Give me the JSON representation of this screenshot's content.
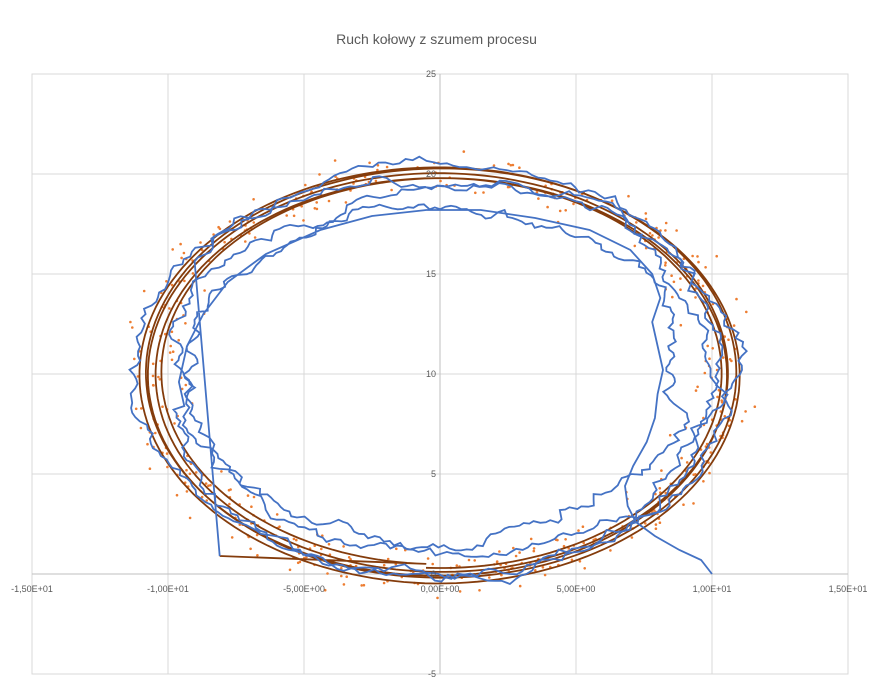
{
  "chart_data": {
    "type": "scatter",
    "title": "Ruch kołowy z szumem procesu",
    "xlabel": "",
    "ylabel": "",
    "xlim": [
      -15,
      15
    ],
    "ylim": [
      -5,
      25
    ],
    "x_ticks": [
      -15,
      -10,
      -5,
      0,
      5,
      10,
      15
    ],
    "x_tick_labels": [
      "-1,50E+01",
      "-1,00E+01",
      "-5,00E+00",
      "0,00E+00",
      "5,00E+00",
      "1,00E+01",
      "1,50E+01"
    ],
    "y_ticks": [
      -5,
      0,
      5,
      10,
      15,
      20,
      25
    ],
    "y_tick_labels": [
      "-5",
      "0",
      "5",
      "10",
      "15",
      "20",
      "25"
    ],
    "grid": true,
    "legend": "none",
    "series": [
      {
        "kind": "measurements (markers)",
        "color": "#ED7D31",
        "center": [
          0,
          10
        ],
        "radius_x": 10.5,
        "radius_y": 10.0,
        "approx_point_count": 500,
        "noise_sd": 0.8
      },
      {
        "kind": "filtered estimate (line)",
        "color": "#4472C4",
        "x_start": 10,
        "y_start": 0,
        "points": [
          [
            10,
            0
          ],
          [
            9.6,
            0.7
          ],
          [
            8.8,
            1.2
          ],
          [
            7.9,
            1.9
          ],
          [
            7.2,
            2.6
          ],
          [
            6.9,
            3.4
          ],
          [
            6.8,
            4.4
          ],
          [
            7.1,
            5.4
          ],
          [
            7.6,
            6.6
          ],
          [
            7.9,
            7.8
          ],
          [
            8.0,
            9.0
          ],
          [
            8.2,
            10.2
          ],
          [
            8.0,
            11.4
          ],
          [
            7.8,
            12.6
          ],
          [
            8.1,
            13.8
          ],
          [
            7.8,
            15.0
          ],
          [
            7.0,
            16.2
          ],
          [
            5.5,
            17.2
          ],
          [
            3.5,
            17.8
          ],
          [
            1.5,
            18.2
          ],
          [
            -0.5,
            18.2
          ],
          [
            -2.5,
            17.9
          ],
          [
            -4.4,
            17.2
          ],
          [
            -6.4,
            16.0
          ],
          [
            -7.8,
            14.6
          ],
          [
            -8.7,
            13.0
          ],
          [
            -9.3,
            11.4
          ],
          [
            -9.6,
            9.6
          ],
          [
            -9.4,
            8.4
          ]
        ],
        "loops": 4,
        "end_point": [
          -8.1,
          0.9
        ]
      },
      {
        "kind": "true trajectory (line)",
        "color": "#843C0C",
        "center": [
          0,
          10
        ],
        "radii": [
          10.0,
          10.2,
          10.5,
          10.8,
          10.4,
          9.8
        ],
        "start_point": [
          0.5,
          0
        ],
        "end_point": [
          -8.1,
          0.9
        ]
      }
    ]
  }
}
